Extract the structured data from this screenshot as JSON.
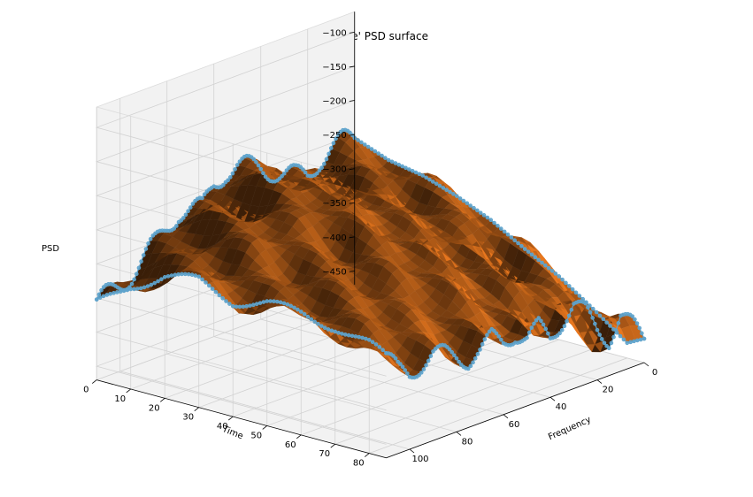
{
  "chart_data": {
    "type": "surface",
    "title": "'apple' PSD surface",
    "xlabel": "Frequency",
    "ylabel": "Time",
    "zlabel": "PSD",
    "x_range": [
      0,
      110
    ],
    "y_range": [
      0,
      85
    ],
    "z_range": [
      -470,
      -70
    ],
    "x_ticks": [
      0,
      20,
      40,
      60,
      80,
      100
    ],
    "y_ticks": [
      0,
      10,
      20,
      30,
      40,
      50,
      60,
      70,
      80
    ],
    "z_ticks": [
      -100,
      -150,
      -200,
      -250,
      -300,
      -350,
      -400,
      -450
    ],
    "grid": true,
    "surface_color": "#e8771e",
    "edge_marker_color": "#5ea3cc",
    "front_time_edge": {
      "frequency": [
        0,
        5,
        10,
        15,
        20,
        25,
        30,
        35,
        40,
        45,
        50,
        55,
        60,
        65,
        70,
        75,
        80,
        85,
        90,
        95,
        100,
        105,
        110
      ],
      "psd": [
        -440,
        -395,
        -360,
        -420,
        -385,
        -330,
        -300,
        -340,
        -380,
        -345,
        -375,
        -350,
        -365,
        -350,
        -385,
        -400,
        -380,
        -370,
        -365,
        -385,
        -405,
        -390,
        -345
      ]
    },
    "back_time_edge": {
      "frequency": [
        0,
        5,
        10,
        15,
        20,
        25,
        30,
        35,
        40,
        45,
        50,
        55,
        60,
        65,
        70,
        75,
        80,
        85,
        90,
        95,
        100,
        105,
        110
      ],
      "psd": [
        -200,
        -195,
        -195,
        -205,
        -235,
        -225,
        -200,
        -165,
        -140,
        -125,
        -105,
        -95,
        -115,
        -175,
        -160,
        -140,
        -170,
        -205,
        -230,
        -250,
        -265,
        -280,
        -290
      ]
    },
    "front_frequency_edge": {
      "time": [
        0,
        10,
        20,
        30,
        40,
        50,
        60,
        70,
        80,
        85
      ],
      "psd": [
        -310,
        -320,
        -310,
        -315,
        -330,
        -360,
        -385,
        -425,
        -470,
        -430
      ]
    },
    "back_frequency_edge": {
      "time": [
        0,
        10,
        20,
        30,
        40,
        50,
        60,
        70,
        80,
        85
      ],
      "psd": [
        -430,
        -340,
        -280,
        -260,
        -285,
        -260,
        -255,
        -260,
        -280,
        -300
      ]
    }
  }
}
